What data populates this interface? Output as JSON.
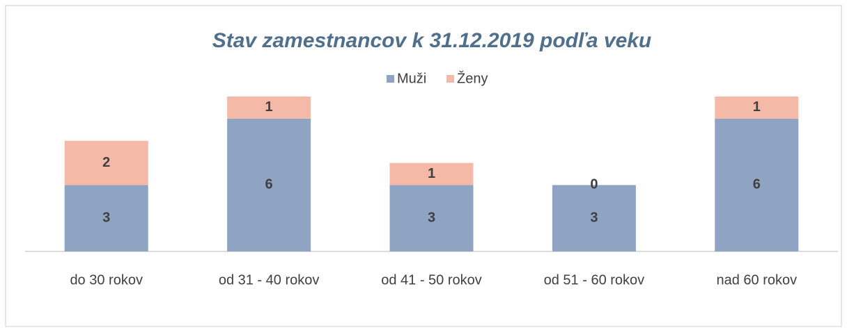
{
  "chart_data": {
    "type": "stacked_bar",
    "title": "Stav zamestnancov k 31.12.2019 podľa veku",
    "categories": [
      "do 30 rokov",
      "od 31 - 40 rokov",
      "od 41 - 50 rokov",
      "od 51 - 60 rokov",
      "nad 60 rokov"
    ],
    "series": [
      {
        "name": "Muži",
        "color": "#8fa3c2",
        "values": [
          3,
          6,
          3,
          3,
          6
        ]
      },
      {
        "name": "Ženy",
        "color": "#f5b9a7",
        "values": [
          2,
          1,
          1,
          0,
          1
        ]
      }
    ],
    "legend": "top"
  }
}
